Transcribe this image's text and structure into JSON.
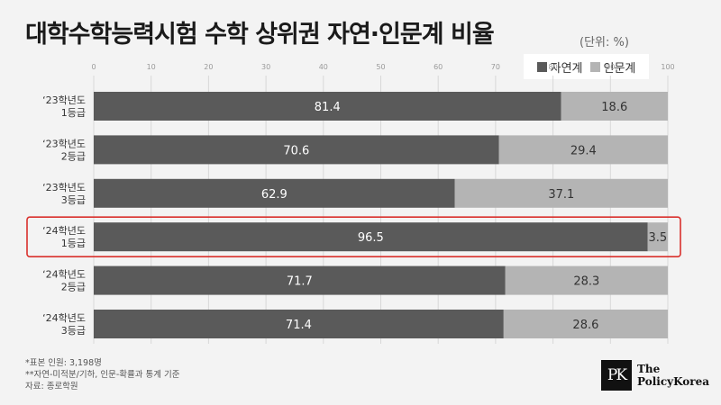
{
  "title": "대학수학능력시험 수학 상위권 자연·인문계 비율",
  "unit": "(단위: %)",
  "legend": {
    "science": "자연계",
    "humanities": "인문계"
  },
  "colors": {
    "science": "#5a5a5a",
    "humanities": "#b4b4b4",
    "highlight": "#d9302c"
  },
  "chart_data": {
    "type": "bar",
    "orientation": "horizontal",
    "stacked": true,
    "categories": [
      [
        "‘23학년도",
        "1등급"
      ],
      [
        "‘23학년도",
        "2등급"
      ],
      [
        "‘23학년도",
        "3등급"
      ],
      [
        "‘24학년도",
        "1등급"
      ],
      [
        "‘24학년도",
        "2등급"
      ],
      [
        "‘24학년도",
        "3등급"
      ]
    ],
    "series": [
      {
        "name": "자연계",
        "values": [
          81.4,
          70.6,
          62.9,
          96.5,
          71.7,
          71.4
        ]
      },
      {
        "name": "인문계",
        "values": [
          18.6,
          29.4,
          37.1,
          3.5,
          28.3,
          28.6
        ]
      }
    ],
    "xticks": [
      0,
      10,
      20,
      30,
      40,
      50,
      60,
      70,
      80,
      90,
      100
    ],
    "xlim": [
      0,
      100
    ],
    "grid": true,
    "highlighted_category": 3,
    "legend_position": "top-right"
  },
  "footnotes": [
    "*표본 인원: 3,198명",
    "**자연-미적분/기하, 인문-확률과 통계 기준",
    "자료: 종로학원"
  ],
  "logo": {
    "mark": "PK",
    "line1": "The",
    "line2": "PolicyKorea"
  }
}
